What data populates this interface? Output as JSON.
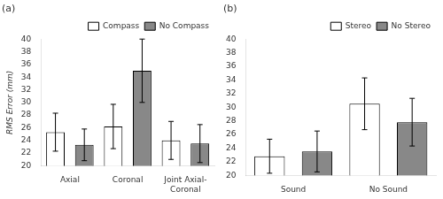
{
  "chart_data": [
    {
      "type": "bar",
      "title": "(a)",
      "categories": [
        "Axial",
        "Coronal",
        "Joint Axial-\nCoronal"
      ],
      "series": [
        {
          "name": "Compass",
          "color": "#FFFFFF",
          "values": [
            25.3,
            26.2,
            24.0
          ],
          "errors": [
            3.0,
            3.5,
            3.0
          ]
        },
        {
          "name": "No Compass",
          "color": "#888888",
          "values": [
            23.3,
            35.0,
            23.5
          ],
          "errors": [
            2.5,
            5.0,
            3.0
          ]
        }
      ],
      "ylabel": "RMS Error (mm)",
      "ylim": [
        20,
        40
      ],
      "yticks": [
        20,
        22,
        24,
        26,
        28,
        30,
        32,
        34,
        36,
        38,
        40
      ],
      "grid": false,
      "legend": "upper right"
    },
    {
      "type": "bar",
      "title": "(b)",
      "categories": [
        "Sound",
        "No Sound"
      ],
      "series": [
        {
          "name": "Stereo",
          "color": "#FFFFFF",
          "values": [
            22.8,
            30.5
          ],
          "errors": [
            2.5,
            3.8
          ]
        },
        {
          "name": "No Stereo",
          "color": "#888888",
          "values": [
            23.5,
            27.8
          ],
          "errors": [
            3.0,
            3.5
          ]
        }
      ],
      "ylim": [
        20,
        40
      ],
      "yticks": [
        20,
        22,
        24,
        26,
        28,
        30,
        32,
        34,
        36,
        38,
        40
      ],
      "grid": false,
      "legend": "upper right"
    }
  ]
}
